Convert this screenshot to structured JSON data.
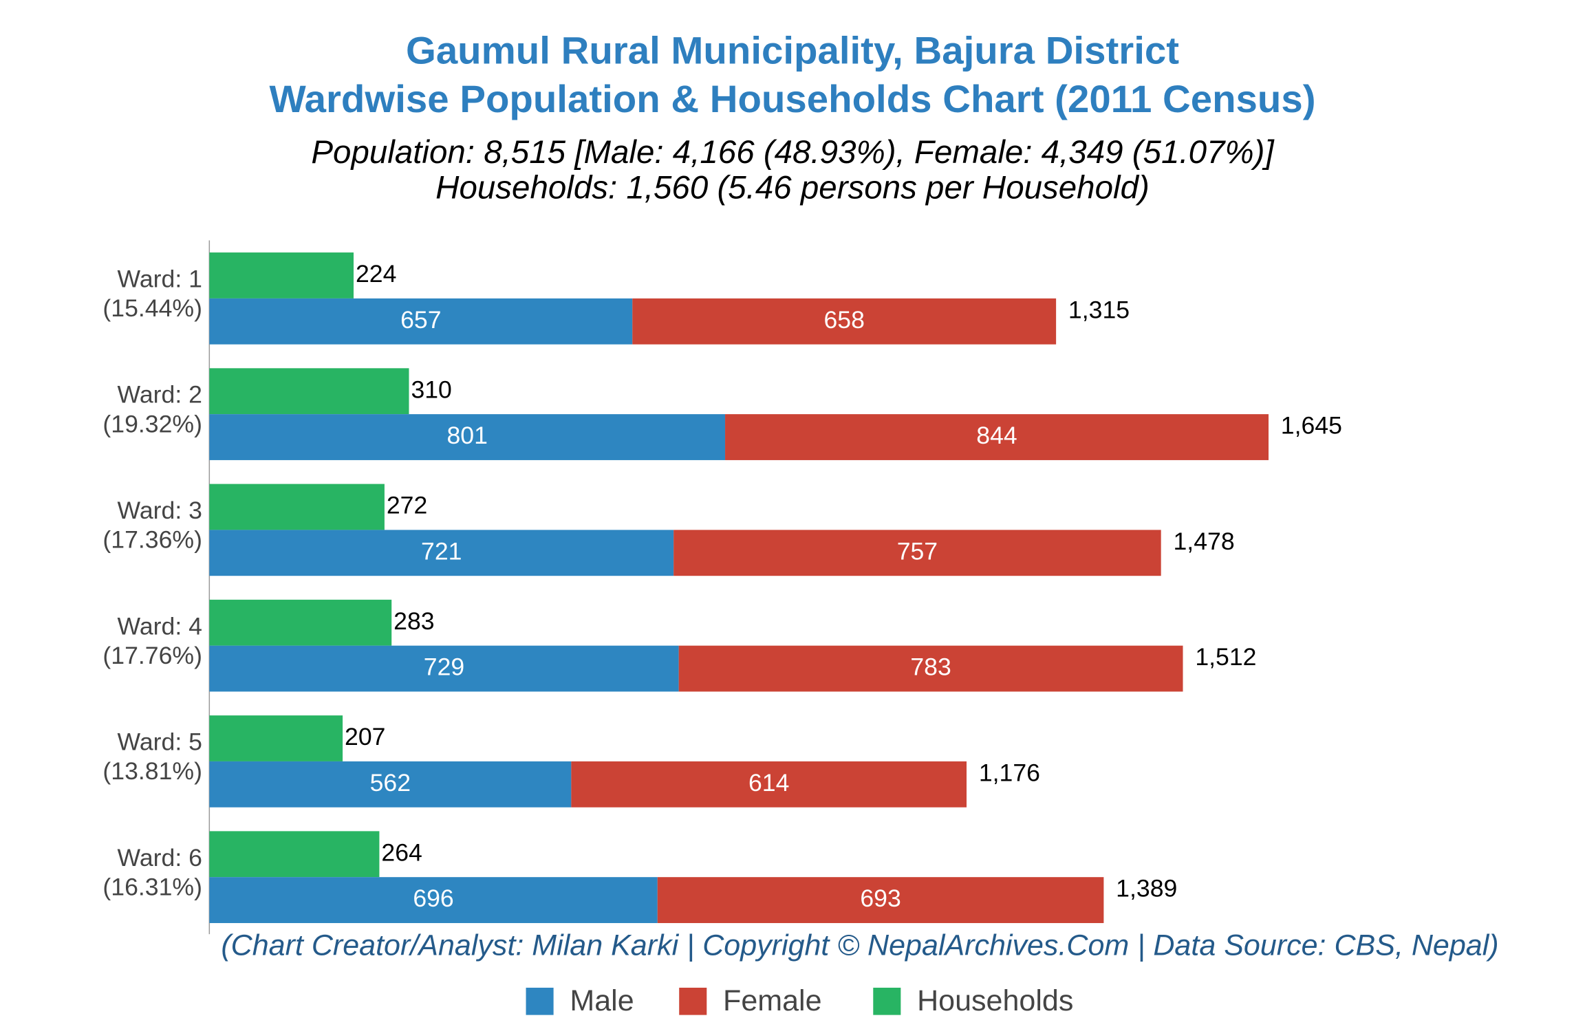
{
  "chart_data": {
    "type": "bar",
    "orientation": "horizontal",
    "title": "Gaumul Rural Municipality, Bajura District",
    "subtitle": "Wardwise Population & Households Chart (2011 Census)",
    "summary": [
      "Population: 8,515 [Male: 4,166 (48.93%), Female: 4,349 (51.07%)]",
      "Households: 1,560 (5.46 persons per Household)"
    ],
    "footer": "(Chart Creator/Analyst: Milan Karki | Copyright © NepalArchives.Com | Data Source: CBS, Nepal)",
    "categories": [
      "Ward: 1",
      "Ward: 2",
      "Ward: 3",
      "Ward: 4",
      "Ward: 5",
      "Ward: 6"
    ],
    "category_shares": [
      "(15.44%)",
      "(19.32%)",
      "(17.36%)",
      "(17.76%)",
      "(13.81%)",
      "(16.31%)"
    ],
    "series": [
      {
        "name": "Male",
        "color": "#2e86c1",
        "values": [
          657,
          801,
          721,
          729,
          562,
          696
        ]
      },
      {
        "name": "Female",
        "color": "#cb4335",
        "values": [
          658,
          844,
          757,
          783,
          614,
          693
        ]
      },
      {
        "name": "Households",
        "color": "#28b463",
        "values": [
          224,
          310,
          272,
          283,
          207,
          264
        ]
      }
    ],
    "totals": [
      1315,
      1645,
      1478,
      1512,
      1176,
      1389
    ],
    "total_labels": [
      "1,315",
      "1,645",
      "1,478",
      "1,512",
      "1,176",
      "1,389"
    ],
    "xlim": [
      0,
      2100
    ],
    "legend": "bottom"
  }
}
